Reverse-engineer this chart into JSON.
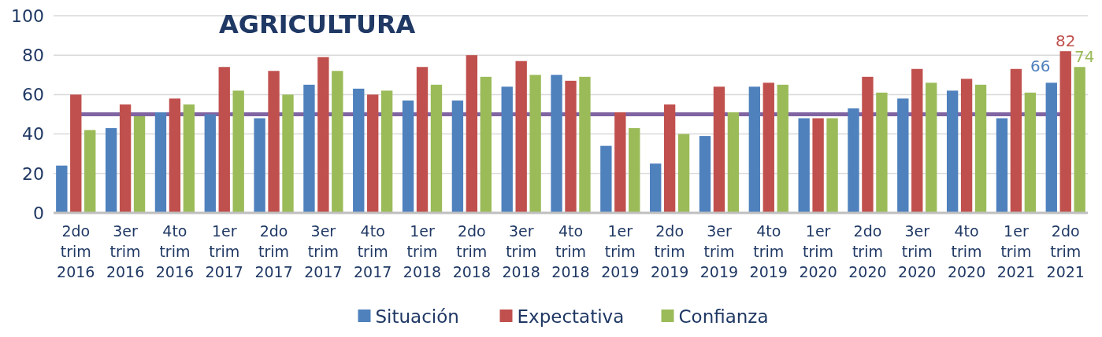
{
  "chart_data": {
    "type": "bar",
    "title": "AGRICULTURA",
    "categories": [
      "2do trim 2016",
      "3er trim 2016",
      "4to trim 2016",
      "1er trim 2017",
      "2do trim 2017",
      "3er trim 2017",
      "4to trim 2017",
      "1er trim 2018",
      "2do trim 2018",
      "3er trim 2018",
      "4to trim 2018",
      "1er trim 2019",
      "2do trim 2019",
      "3er trim 2019",
      "4to trim 2019",
      "1er trim 2020",
      "2do trim 2020",
      "3er trim 2020",
      "4to trim 2020",
      "1er trim 2021",
      "2do trim 2021"
    ],
    "series": [
      {
        "name": "Situación",
        "color": "#4f81bd",
        "values": [
          24,
          43,
          51,
          50,
          48,
          65,
          63,
          57,
          57,
          64,
          70,
          34,
          25,
          39,
          64,
          48,
          53,
          58,
          62,
          48,
          66
        ],
        "value_labels": [
          null,
          null,
          null,
          null,
          null,
          null,
          null,
          null,
          null,
          null,
          null,
          null,
          null,
          null,
          null,
          null,
          null,
          null,
          null,
          null,
          "66"
        ]
      },
      {
        "name": "Expectativa",
        "color": "#c0504d",
        "values": [
          60,
          55,
          58,
          74,
          72,
          79,
          60,
          74,
          80,
          77,
          67,
          51,
          55,
          64,
          66,
          48,
          69,
          73,
          68,
          73,
          82
        ],
        "value_labels": [
          null,
          null,
          null,
          null,
          null,
          null,
          null,
          null,
          null,
          null,
          null,
          null,
          null,
          null,
          null,
          null,
          null,
          null,
          null,
          null,
          "82"
        ]
      },
      {
        "name": "Confianza",
        "color": "#9bbb59",
        "values": [
          42,
          49,
          55,
          62,
          60,
          72,
          62,
          65,
          69,
          70,
          69,
          43,
          40,
          51,
          65,
          48,
          61,
          66,
          65,
          61,
          74
        ],
        "value_labels": [
          null,
          null,
          null,
          null,
          null,
          null,
          null,
          null,
          null,
          null,
          null,
          null,
          null,
          null,
          null,
          null,
          null,
          null,
          null,
          null,
          "74"
        ]
      }
    ],
    "ylim": [
      0,
      100
    ],
    "yticks": [
      0,
      20,
      40,
      60,
      80,
      100
    ],
    "grid": "y",
    "legend": "bottom",
    "ref_lines": [
      {
        "axis": "y",
        "value": 50,
        "color": "#8064a2"
      }
    ]
  }
}
